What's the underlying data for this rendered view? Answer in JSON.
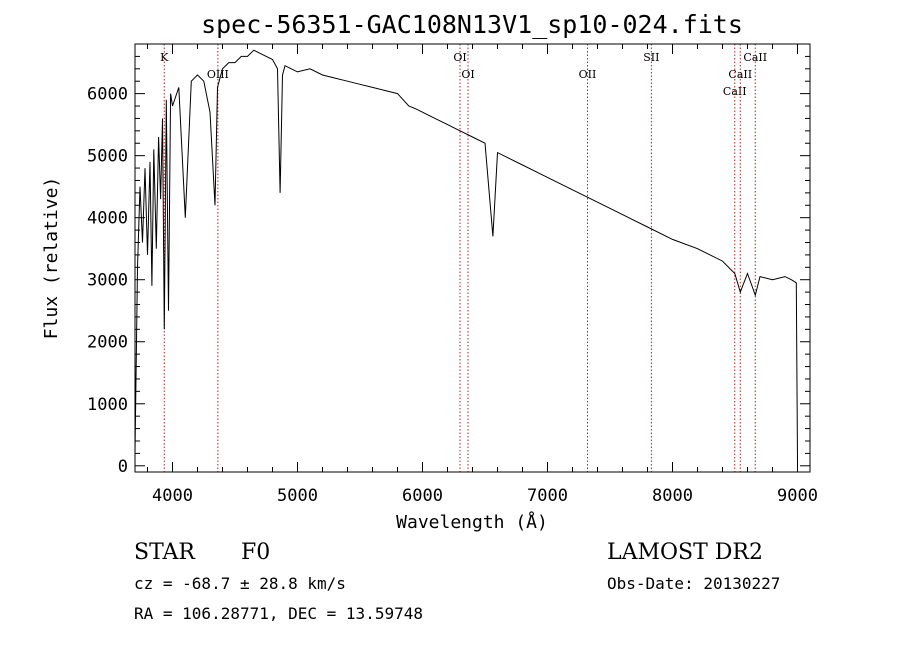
{
  "chart_data": {
    "type": "line",
    "title": "spec-56351-GAC108N13V1_sp10-024.fits",
    "xlabel": "Wavelength (Å)",
    "ylabel": "Flux (relative)",
    "xlim": [
      3700,
      9100
    ],
    "ylim": [
      -100,
      6800
    ],
    "x_ticks": [
      4000,
      5000,
      6000,
      7000,
      8000,
      9000
    ],
    "y_ticks": [
      0,
      1000,
      2000,
      3000,
      4000,
      5000,
      6000
    ],
    "line_color": "#000000",
    "marker_color": "#b22222",
    "grid": false,
    "spectrum": {
      "x": [
        3700,
        3720,
        3740,
        3760,
        3780,
        3800,
        3820,
        3835,
        3850,
        3870,
        3889,
        3905,
        3920,
        3934,
        3950,
        3968,
        3985,
        4000,
        4050,
        4102,
        4150,
        4200,
        4250,
        4300,
        4340,
        4360,
        4400,
        4450,
        4500,
        4550,
        4600,
        4650,
        4700,
        4750,
        4800,
        4840,
        4861,
        4880,
        4900,
        4950,
        5000,
        5100,
        5200,
        5300,
        5400,
        5500,
        5600,
        5700,
        5800,
        5890,
        5950,
        6000,
        6100,
        6200,
        6300,
        6400,
        6500,
        6563,
        6600,
        6700,
        6800,
        6900,
        7000,
        7200,
        7400,
        7600,
        7800,
        8000,
        8200,
        8400,
        8498,
        8542,
        8600,
        8662,
        8700,
        8800,
        8900,
        8950,
        8990,
        9000
      ],
      "y": [
        200,
        3200,
        4500,
        3600,
        4800,
        3400,
        4900,
        2900,
        5100,
        3500,
        5300,
        4300,
        5600,
        2200,
        5900,
        2500,
        6000,
        5800,
        6100,
        4000,
        6200,
        6300,
        6200,
        5700,
        4200,
        6100,
        6400,
        6500,
        6500,
        6600,
        6600,
        6700,
        6650,
        6600,
        6550,
        6400,
        4400,
        6300,
        6450,
        6400,
        6350,
        6400,
        6300,
        6250,
        6200,
        6150,
        6100,
        6050,
        6000,
        5800,
        5750,
        5700,
        5600,
        5500,
        5400,
        5300,
        5200,
        3700,
        5050,
        4950,
        4850,
        4750,
        4650,
        4450,
        4250,
        4050,
        3850,
        3650,
        3500,
        3300,
        3100,
        2800,
        3100,
        2750,
        3050,
        3000,
        3050,
        3000,
        2950,
        50
      ]
    },
    "line_markers": [
      {
        "label": "K",
        "x": 3934
      },
      {
        "label": "OIII",
        "x": 4363
      },
      {
        "label": "OI",
        "x": 6300
      },
      {
        "label": "OI",
        "x": 6364
      },
      {
        "label": "OII",
        "x": 7320
      },
      {
        "label": "SII",
        "x": 7831
      },
      {
        "label": "CaII",
        "x": 8498
      },
      {
        "label": "CaII",
        "x": 8542
      },
      {
        "label": "CaII",
        "x": 8662
      }
    ]
  },
  "info": {
    "object_class": "STAR",
    "subclass": "F0",
    "redshift": "cz = -68.7 ± 28.8 km/s",
    "coords": "RA = 106.28771, DEC =  13.59748",
    "survey": "LAMOST DR2",
    "obs_date": "Obs-Date: 20130227"
  }
}
